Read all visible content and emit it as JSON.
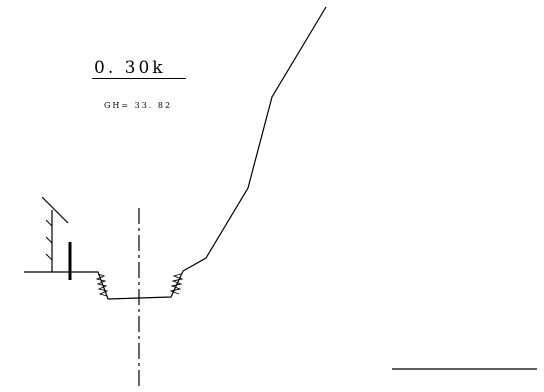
{
  "section": {
    "station_label": "0. 30k",
    "gh_label": "GH= 33. 82"
  }
}
